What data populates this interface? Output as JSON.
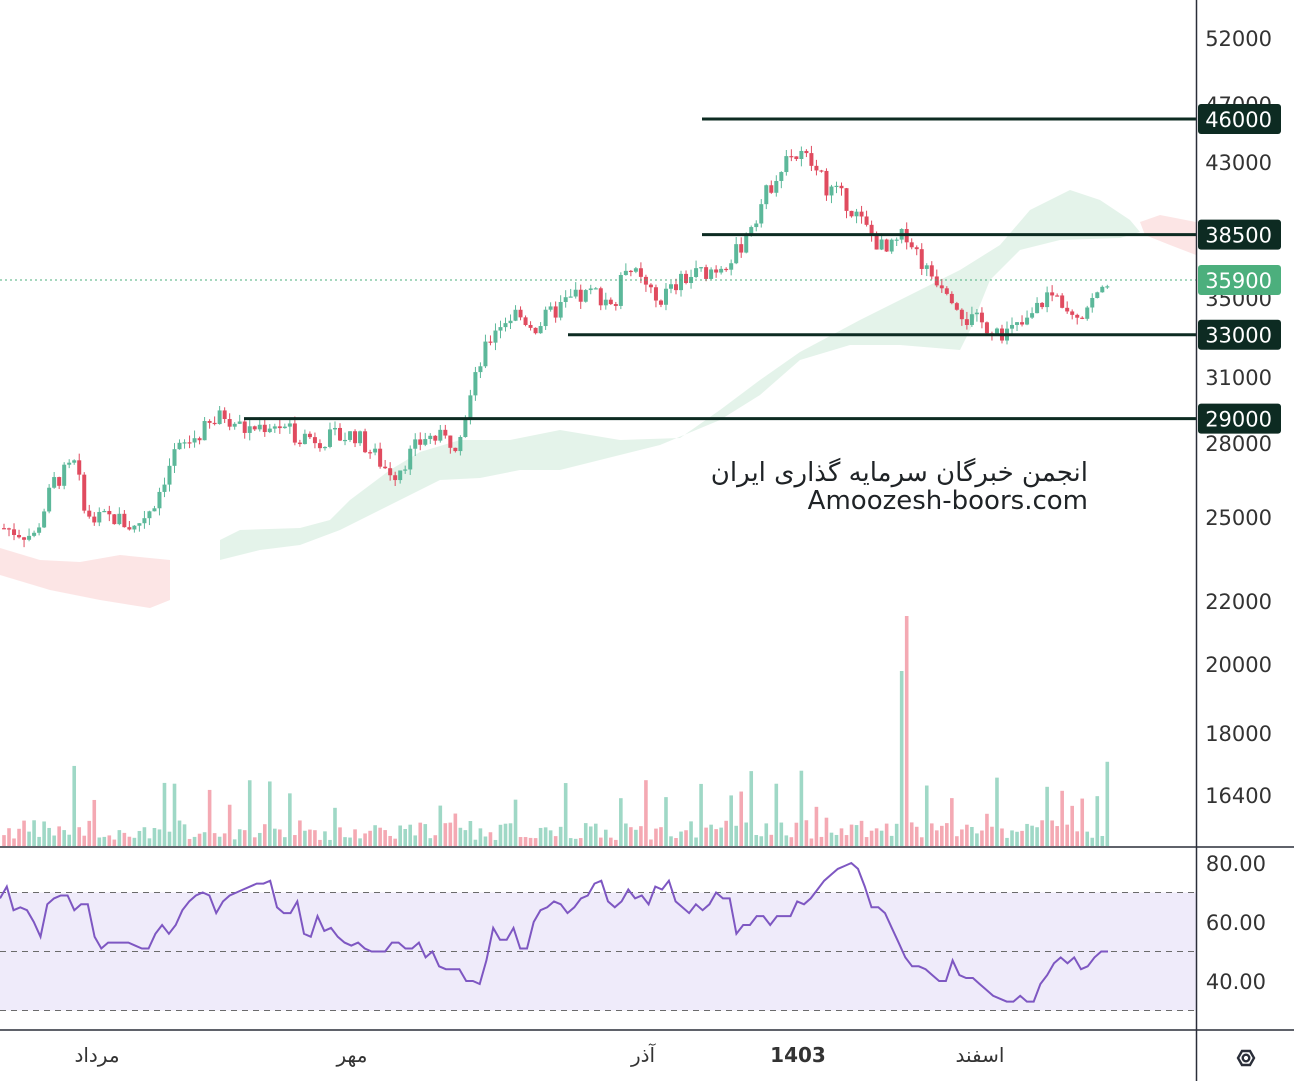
{
  "chart_data": {
    "type": "candlestick",
    "price_axis": {
      "ticks": [
        "52000",
        "47000",
        "43000",
        "38500",
        "35000",
        "31000",
        "28000",
        "25000",
        "22000",
        "20000",
        "18000",
        "16400"
      ]
    },
    "levels": [
      {
        "price": 46000,
        "label": "46000"
      },
      {
        "price": 38500,
        "label": "38500"
      },
      {
        "price": 33000,
        "label": "33000"
      },
      {
        "price": 29000,
        "label": "29000"
      }
    ],
    "last_price": {
      "price": 35900,
      "label": "35900"
    },
    "time_axis": {
      "labels": [
        "مرداد",
        "مهر",
        "آذر",
        "1403",
        "اسفند"
      ]
    },
    "watermark": {
      "line1": "انجمن خبرگان سرمایه گذاری ایران",
      "line2": "Amoozesh-boors.com"
    },
    "rsi": {
      "ticks": [
        "80.00",
        "60.00",
        "40.00"
      ],
      "levels": [
        70,
        50,
        30
      ],
      "values": [
        68,
        72,
        64,
        65,
        64,
        60,
        55,
        66,
        68,
        69,
        69,
        64,
        66,
        66,
        55,
        51,
        53,
        53,
        53,
        53,
        52,
        51,
        51,
        56,
        59,
        56,
        59,
        64,
        67,
        69,
        70,
        69,
        63,
        67,
        69,
        70,
        71,
        72,
        73,
        73,
        74,
        65,
        63,
        63,
        67,
        56,
        55,
        62,
        57,
        58,
        55,
        53,
        52,
        53,
        51,
        50,
        50,
        50,
        53,
        53,
        51,
        51,
        53,
        48,
        50,
        45,
        44,
        44,
        44,
        40,
        40,
        39,
        47,
        58,
        54,
        54,
        58,
        51,
        51,
        60,
        64,
        65,
        67,
        66,
        63,
        65,
        68,
        69,
        73,
        74,
        67,
        65,
        67,
        71,
        68,
        69,
        66,
        72,
        71,
        74,
        67,
        65,
        63,
        66,
        64,
        66,
        70,
        68,
        68,
        56,
        59,
        59,
        62,
        62,
        59,
        62,
        62,
        62,
        67,
        66,
        68,
        71,
        74,
        76,
        78,
        79,
        80,
        78,
        72,
        65,
        65,
        63,
        58,
        53,
        48,
        45,
        45,
        44,
        42,
        40,
        40,
        47,
        42,
        41,
        41,
        39,
        37,
        35,
        34,
        33,
        33,
        35,
        33,
        33,
        39,
        42,
        46,
        48,
        46,
        48,
        44,
        45,
        48,
        50,
        50
      ]
    },
    "colors": {
      "up": "#5cb89a",
      "down": "#e04b5f",
      "up_volume": "#9fd8c6",
      "down_volume": "#f4a9b3",
      "level_line": "#0d2b22",
      "last_price": "#4caf7d",
      "rsi_line": "#7e57c2",
      "rsi_band": "#efebfa",
      "cloud_green": "#dff1e6",
      "cloud_red": "#fce1e1"
    }
  }
}
